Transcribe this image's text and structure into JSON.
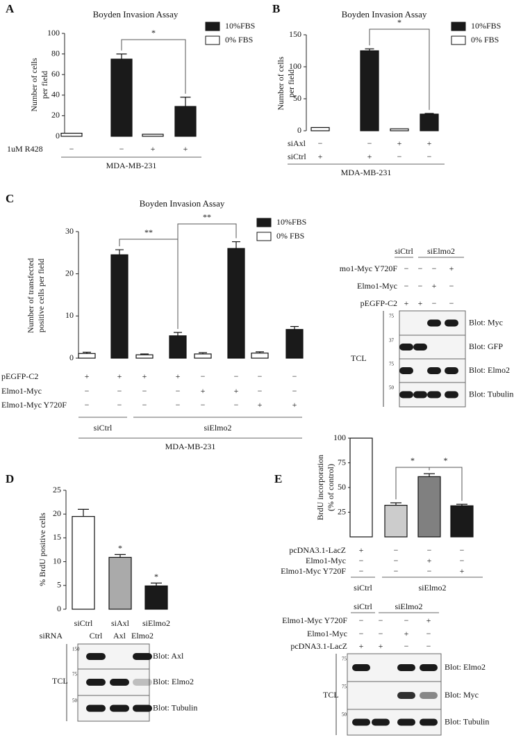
{
  "chart_data": [
    {
      "type": "bar",
      "panel": "A",
      "title": "Boyden Invasion Assay",
      "ylabel": [
        "Number of cells",
        "per field"
      ],
      "categories": [
        null,
        null,
        null,
        null
      ],
      "series": [
        {
          "name": "10%FBS",
          "color": "#1a1a1a",
          "values": [
            null,
            75,
            null,
            29
          ],
          "errors": [
            null,
            5,
            null,
            9
          ]
        },
        {
          "name": "0% FBS",
          "color": "#ffffff",
          "values": [
            3,
            null,
            2,
            null
          ],
          "errors": [
            null,
            null,
            null,
            null
          ]
        }
      ],
      "ylim": [
        0,
        100
      ],
      "yticks": [
        0,
        20,
        40,
        60,
        80,
        100
      ],
      "conditions": [
        {
          "label": "1uM R428",
          "values": [
            "−",
            "−",
            "+",
            "+"
          ]
        }
      ],
      "cell_line": "MDA-MB-231",
      "significance": [
        {
          "label": "*"
        }
      ]
    },
    {
      "type": "bar",
      "panel": "B",
      "title": "Boyden Invasion Assay",
      "ylabel": [
        "Number of cells",
        "per field"
      ],
      "categories": [
        null,
        null,
        null,
        null
      ],
      "series": [
        {
          "name": "10%FBS",
          "color": "#1a1a1a",
          "values": [
            null,
            125,
            null,
            26
          ],
          "errors": [
            null,
            3,
            null,
            1
          ]
        },
        {
          "name": "0% FBS",
          "color": "#ffffff",
          "values": [
            5,
            null,
            3,
            null
          ],
          "errors": [
            null,
            null,
            null,
            null
          ]
        }
      ],
      "ylim": [
        0,
        150
      ],
      "yticks": [
        0,
        50,
        100,
        150
      ],
      "conditions": [
        {
          "label": "siAxl",
          "values": [
            "−",
            "−",
            "+",
            "+"
          ]
        },
        {
          "label": "siCtrl",
          "values": [
            "+",
            "+",
            "−",
            "−"
          ]
        }
      ],
      "cell_line": "MDA-MB-231",
      "significance": [
        {
          "label": "*"
        }
      ]
    },
    {
      "type": "bar",
      "panel": "C",
      "title": "Boyden Invasion Assay",
      "ylabel": [
        "Number of transfected",
        "positive cells per field"
      ],
      "categories": [
        null,
        null,
        null,
        null,
        null,
        null,
        null,
        null
      ],
      "series": [
        {
          "name": "10%FBS",
          "color": "#1a1a1a",
          "values": [
            null,
            24.5,
            null,
            5.3,
            null,
            26,
            null,
            6.8
          ],
          "errors": [
            null,
            1.2,
            null,
            0.8,
            null,
            1.6,
            null,
            0.7
          ]
        },
        {
          "name": "0% FBS",
          "color": "#ffffff",
          "values": [
            1.1,
            null,
            0.8,
            null,
            1.0,
            null,
            1.2,
            null
          ],
          "errors": [
            0.3,
            null,
            0.2,
            null,
            0.3,
            null,
            0.3,
            null
          ]
        }
      ],
      "ylim": [
        0,
        30
      ],
      "yticks": [
        0,
        10,
        20,
        30
      ],
      "conditions": [
        {
          "label": "pEGFP-C2",
          "values": [
            "+",
            "+",
            "+",
            "+",
            "−",
            "−",
            "−",
            "−"
          ]
        },
        {
          "label": "Elmo1-Myc",
          "values": [
            "−",
            "−",
            "−",
            "−",
            "+",
            "+",
            "−",
            "−"
          ]
        },
        {
          "label": "Elmo1-Myc Y720F",
          "values": [
            "−",
            "−",
            "−",
            "−",
            "−",
            "−",
            "+",
            "+"
          ]
        }
      ],
      "groups": [
        "siCtrl",
        "siElmo2"
      ],
      "cell_line": "MDA-MB-231",
      "significance": [
        {
          "label": "**"
        },
        {
          "label": "**"
        }
      ]
    },
    {
      "type": "bar",
      "panel": "D",
      "ylabel": [
        "% BrdU positive cells"
      ],
      "categories": [
        "siCtrl",
        "siAxl",
        "siElmo2"
      ],
      "values": [
        19.5,
        10.9,
        4.9
      ],
      "errors": [
        1.5,
        0.6,
        0.6
      ],
      "colors": [
        "#ffffff",
        "#aaaaaa",
        "#1a1a1a"
      ],
      "bar_labels": [
        null,
        "*",
        "*"
      ],
      "ylim": [
        0,
        25
      ],
      "yticks": [
        0,
        5,
        10,
        15,
        20,
        25
      ]
    },
    {
      "type": "bar",
      "panel": "E",
      "ylabel": [
        "BrdU incorporation",
        "(% of control)"
      ],
      "categories": [
        null,
        null,
        null,
        null
      ],
      "values": [
        100,
        32,
        61,
        31.5
      ],
      "errors": [
        null,
        2.5,
        3,
        1.5
      ],
      "colors": [
        "#ffffff",
        "#cccccc",
        "#808080",
        "#1a1a1a"
      ],
      "ylim": [
        0,
        100
      ],
      "yticks": [
        25,
        50,
        75,
        100
      ],
      "conditions": [
        {
          "label": "pcDNA3.1-LacZ",
          "values": [
            "+",
            "−",
            "−",
            "−"
          ]
        },
        {
          "label": "Elmo1-Myc",
          "values": [
            "−",
            "−",
            "+",
            "−"
          ]
        },
        {
          "label": "Elmo1-Myc Y720F",
          "values": [
            "−",
            "−",
            "−",
            "+"
          ]
        }
      ],
      "groups": [
        "siCtrl",
        "siElmo2"
      ],
      "significance": [
        {
          "label": "*"
        },
        {
          "label": "*"
        }
      ]
    }
  ],
  "blots": [
    {
      "groups": [
        "siCtrl",
        "siElmo2"
      ],
      "conditions": [
        {
          "label": "mo1-Myc Y720F",
          "values": [
            "−",
            "−",
            "−",
            "+"
          ]
        },
        {
          "label": "Elmo1-Myc",
          "values": [
            "−",
            "−",
            "+",
            "−"
          ]
        },
        {
          "label": "pEGFP-C2",
          "values": [
            "+",
            "+",
            "−",
            "−"
          ]
        }
      ],
      "rows": [
        {
          "label": "Blot: Myc",
          "mw": 75
        },
        {
          "label": "Blot: GFP",
          "mw": 37
        },
        {
          "label": "Blot: Elmo2",
          "mw": 75
        },
        {
          "label": "Blot: Tubulin",
          "mw": 50
        }
      ],
      "tcl": "TCL"
    },
    {
      "header": "siRNA",
      "lanes": [
        "Ctrl",
        "Axl",
        "Elmo2"
      ],
      "rows": [
        {
          "label": "Blot: Axl",
          "mw": 150
        },
        {
          "label": "Blot: Elmo2",
          "mw": 75
        },
        {
          "label": "Blot: Tubulin",
          "mw": 50
        }
      ],
      "tcl": "TCL"
    },
    {
      "groups": [
        "siCtrl",
        "siElmo2"
      ],
      "conditions": [
        {
          "label": "Elmo1-Myc Y720F",
          "values": [
            "−",
            "−",
            "−",
            "+"
          ]
        },
        {
          "label": "Elmo1-Myc",
          "values": [
            "−",
            "−",
            "+",
            "−"
          ]
        },
        {
          "label": "pcDNA3.1-LacZ",
          "values": [
            "+",
            "+",
            "−",
            "−"
          ]
        }
      ],
      "rows": [
        {
          "label": "Blot: Elmo2",
          "mw": 75
        },
        {
          "label": "Blot: Myc",
          "mw": 75
        },
        {
          "label": "Blot: Tubulin",
          "mw": 50
        }
      ],
      "tcl": "TCL"
    }
  ]
}
